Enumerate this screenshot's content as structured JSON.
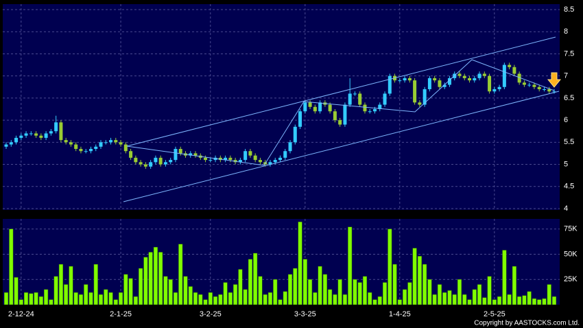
{
  "chart_data": {
    "type": "candlestick",
    "categories": [
      null,
      null,
      null,
      "2-12-24",
      null,
      null,
      null,
      null,
      null,
      null,
      null,
      null,
      null,
      null,
      null,
      null,
      null,
      null,
      null,
      null,
      null,
      null,
      null,
      "2-1-25",
      null,
      null,
      null,
      null,
      null,
      null,
      null,
      null,
      null,
      null,
      null,
      null,
      null,
      null,
      null,
      null,
      null,
      "3-2-25",
      null,
      null,
      null,
      null,
      null,
      null,
      null,
      null,
      null,
      null,
      null,
      null,
      null,
      null,
      null,
      null,
      null,
      null,
      "3-3-25",
      null,
      null,
      null,
      null,
      null,
      null,
      null,
      null,
      null,
      null,
      null,
      null,
      null,
      null,
      null,
      null,
      null,
      null,
      "1-4-25",
      null,
      null,
      null,
      null,
      null,
      null,
      null,
      null,
      null,
      null,
      null,
      null,
      null,
      null,
      null,
      null,
      null,
      null,
      "2-5-25",
      null,
      null,
      null,
      null,
      null,
      null,
      null,
      null,
      null,
      null,
      null,
      null
    ],
    "open": [
      5.4,
      5.45,
      5.5,
      5.6,
      5.65,
      5.7,
      5.7,
      5.65,
      5.6,
      5.7,
      5.75,
      5.95,
      5.55,
      5.5,
      5.45,
      5.35,
      5.3,
      5.3,
      5.35,
      5.4,
      5.5,
      5.5,
      5.55,
      5.5,
      5.45,
      5.3,
      5.15,
      5.05,
      5.0,
      4.95,
      5.05,
      5.15,
      5.0,
      5.05,
      5.1,
      5.35,
      5.25,
      5.2,
      5.25,
      5.2,
      5.15,
      5.1,
      5.1,
      5.15,
      5.1,
      5.15,
      5.1,
      5.05,
      5.1,
      5.3,
      5.2,
      5.1,
      5.05,
      5.0,
      5.05,
      5.1,
      5.15,
      5.3,
      5.5,
      5.85,
      6.2,
      6.4,
      6.3,
      6.2,
      6.4,
      6.35,
      6.2,
      6.0,
      5.9,
      6.35,
      6.6,
      6.6,
      6.35,
      6.2,
      6.2,
      6.25,
      6.35,
      6.6,
      7.0,
      6.9,
      6.9,
      6.95,
      6.9,
      6.4,
      6.35,
      6.7,
      6.95,
      6.9,
      6.75,
      6.8,
      6.95,
      7.05,
      7.0,
      6.95,
      6.9,
      6.95,
      7.05,
      7.0,
      6.65,
      6.7,
      6.75,
      7.25,
      7.2,
      7.05,
      6.85,
      6.8,
      6.8,
      6.75,
      6.7,
      6.7,
      6.65
    ],
    "high": [
      5.5,
      5.55,
      5.65,
      5.7,
      5.75,
      5.75,
      5.75,
      5.7,
      5.75,
      5.8,
      6.1,
      6.0,
      5.6,
      5.55,
      5.5,
      5.4,
      5.35,
      5.4,
      5.45,
      5.55,
      5.55,
      5.6,
      5.6,
      5.55,
      5.5,
      5.35,
      5.2,
      5.1,
      5.05,
      5.1,
      5.2,
      5.2,
      5.1,
      5.15,
      5.4,
      5.4,
      5.3,
      5.3,
      5.3,
      5.25,
      5.2,
      5.15,
      5.2,
      5.2,
      5.2,
      5.2,
      5.15,
      5.15,
      5.35,
      5.35,
      5.25,
      5.15,
      5.1,
      5.1,
      5.15,
      5.2,
      5.35,
      5.55,
      5.9,
      6.25,
      6.45,
      6.45,
      6.35,
      6.45,
      6.45,
      6.4,
      6.25,
      6.05,
      6.4,
      6.95,
      6.65,
      6.65,
      6.4,
      6.25,
      6.3,
      6.4,
      6.65,
      7.05,
      7.05,
      6.95,
      7.0,
      7.0,
      6.95,
      6.45,
      6.75,
      7.0,
      7.0,
      6.95,
      6.85,
      7.0,
      7.1,
      7.1,
      7.05,
      7.0,
      7.0,
      7.1,
      7.1,
      7.05,
      6.75,
      6.8,
      7.3,
      7.3,
      7.25,
      7.1,
      6.9,
      6.85,
      6.85,
      6.8,
      6.75,
      6.75,
      6.7
    ],
    "low": [
      5.35,
      5.4,
      5.45,
      5.55,
      5.6,
      5.65,
      5.6,
      5.55,
      5.55,
      5.65,
      5.7,
      5.5,
      5.45,
      5.4,
      5.3,
      5.25,
      5.25,
      5.25,
      5.3,
      5.35,
      5.45,
      5.45,
      5.45,
      5.4,
      5.25,
      5.1,
      5.0,
      4.95,
      4.9,
      4.9,
      5.0,
      4.95,
      4.95,
      5.0,
      5.05,
      5.2,
      5.15,
      5.15,
      5.15,
      5.1,
      5.05,
      5.05,
      5.05,
      5.05,
      5.05,
      5.05,
      5.0,
      5.0,
      5.05,
      5.15,
      5.05,
      5.0,
      4.95,
      4.95,
      5.0,
      5.05,
      5.1,
      5.25,
      5.45,
      5.8,
      6.15,
      6.25,
      6.15,
      6.15,
      6.3,
      6.15,
      5.95,
      5.85,
      5.85,
      6.3,
      6.55,
      6.3,
      6.15,
      6.15,
      6.15,
      6.2,
      6.3,
      6.55,
      6.85,
      6.85,
      6.85,
      6.85,
      6.35,
      6.3,
      6.3,
      6.65,
      6.85,
      6.7,
      6.7,
      6.75,
      6.9,
      6.95,
      6.9,
      6.85,
      6.85,
      6.9,
      6.95,
      6.6,
      6.6,
      6.65,
      6.7,
      7.15,
      7.0,
      6.8,
      6.75,
      6.75,
      6.7,
      6.65,
      6.65,
      6.6,
      6.6
    ],
    "close": [
      5.45,
      5.5,
      5.6,
      5.65,
      5.7,
      5.7,
      5.65,
      5.6,
      5.7,
      5.75,
      5.95,
      5.55,
      5.5,
      5.45,
      5.35,
      5.3,
      5.3,
      5.35,
      5.4,
      5.5,
      5.5,
      5.55,
      5.5,
      5.45,
      5.3,
      5.15,
      5.05,
      5.0,
      4.95,
      5.05,
      5.15,
      5.0,
      5.05,
      5.1,
      5.35,
      5.25,
      5.2,
      5.25,
      5.2,
      5.15,
      5.1,
      5.1,
      5.15,
      5.1,
      5.15,
      5.1,
      5.05,
      5.1,
      5.3,
      5.2,
      5.1,
      5.05,
      5.0,
      5.05,
      5.1,
      5.15,
      5.3,
      5.5,
      5.85,
      6.2,
      6.4,
      6.3,
      6.2,
      6.4,
      6.35,
      6.2,
      6.0,
      5.9,
      6.35,
      6.6,
      6.6,
      6.35,
      6.2,
      6.2,
      6.25,
      6.35,
      6.6,
      7.0,
      6.9,
      6.9,
      6.95,
      6.9,
      6.4,
      6.35,
      6.7,
      6.95,
      6.9,
      6.75,
      6.8,
      6.95,
      7.05,
      7.0,
      6.95,
      6.9,
      6.95,
      7.05,
      7.0,
      6.65,
      6.7,
      6.75,
      7.25,
      7.2,
      7.05,
      6.85,
      6.8,
      6.8,
      6.75,
      6.7,
      6.7,
      6.65,
      6.65
    ],
    "volume": [
      12000,
      75000,
      27000,
      5000,
      12000,
      11000,
      12000,
      8000,
      15000,
      5000,
      28000,
      40000,
      20000,
      38000,
      12000,
      10000,
      20000,
      12000,
      40000,
      10000,
      15000,
      12000,
      5000,
      12000,
      30000,
      26000,
      8000,
      36000,
      47000,
      52000,
      57000,
      52000,
      28000,
      25000,
      12000,
      60000,
      28000,
      18000,
      12000,
      10000,
      5000,
      12000,
      8000,
      10000,
      22000,
      12000,
      20000,
      35000,
      15000,
      45000,
      51000,
      28000,
      10000,
      12000,
      25000,
      5000,
      13000,
      30000,
      36000,
      82000,
      45000,
      25000,
      12000,
      38000,
      30000,
      15000,
      10000,
      25000,
      10000,
      77000,
      25000,
      22000,
      28000,
      12000,
      5000,
      8000,
      22000,
      75000,
      40000,
      5000,
      15000,
      22000,
      56000,
      48000,
      40000,
      25000,
      10000,
      20000,
      12000,
      14000,
      10000,
      25000,
      10000,
      5000,
      15000,
      20000,
      7000,
      28000,
      5000,
      8000,
      54000,
      10000,
      38000,
      8000,
      9000,
      13000,
      6000,
      5000,
      6000,
      20000,
      8000
    ],
    "up_color": "#33ccff",
    "down_color": "#99cc33",
    "volume_color": "#80ff00",
    "ylim": [
      4,
      8.5
    ],
    "yticks": [
      4,
      4.5,
      5,
      5.5,
      6,
      6.5,
      7,
      7.5,
      8,
      8.5
    ],
    "y2lim": [
      0,
      85000
    ],
    "y2ticks": [
      {
        "value": 25000,
        "label": "25K"
      },
      {
        "value": 50000,
        "label": "50K"
      },
      {
        "value": 75000,
        "label": "75K"
      }
    ],
    "grid": true,
    "footer": "Copyright by AASTOCKS.com Ltd."
  }
}
